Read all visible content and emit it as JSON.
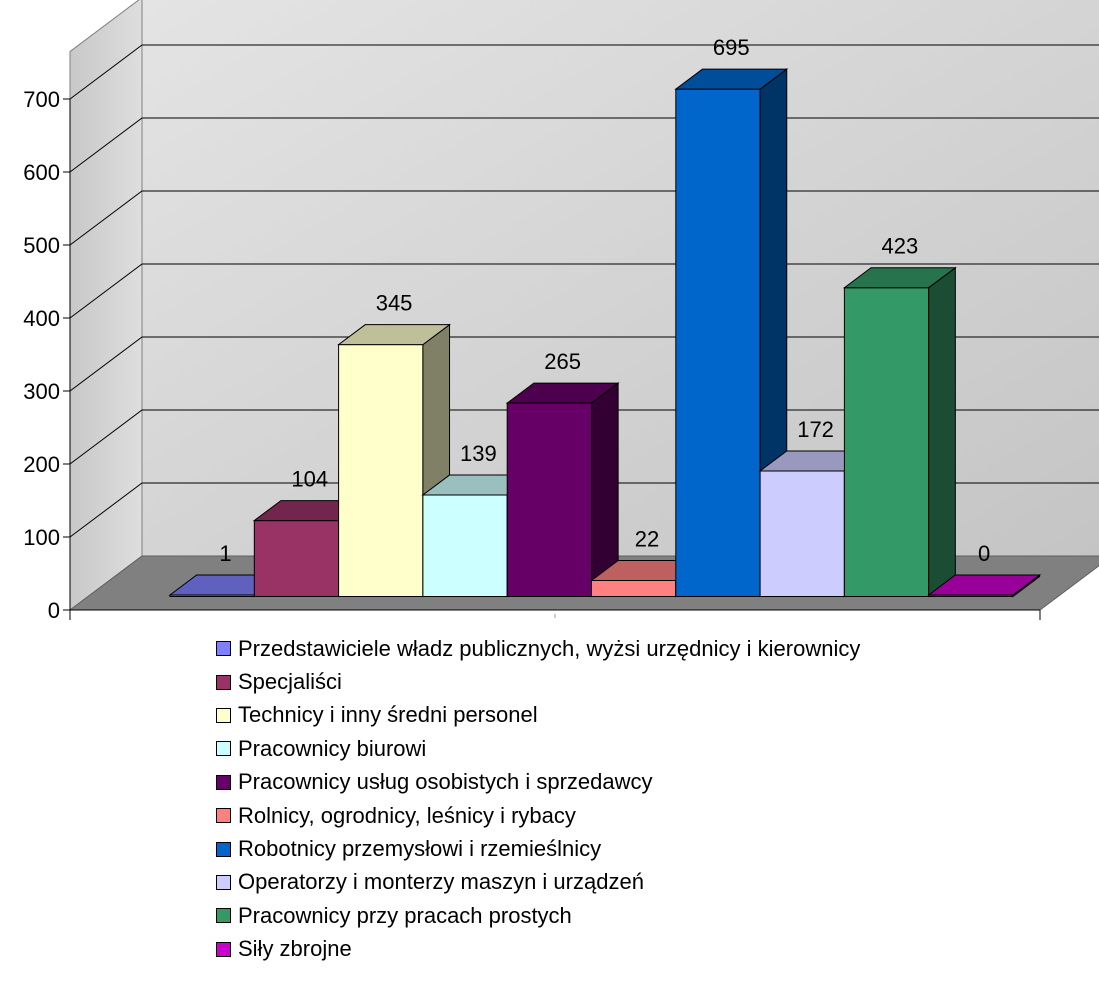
{
  "chart_data": {
    "type": "bar",
    "title": "",
    "xlabel": "",
    "ylabel": "",
    "ylim": [
      0,
      700
    ],
    "yticks": [
      0,
      100,
      200,
      300,
      400,
      500,
      600,
      700
    ],
    "grid": true,
    "legend_position": "bottom",
    "three_d": true,
    "series": [
      {
        "name": "Przedstawiciele władz publicznych, wyżsi urzędnicy i kierownicy",
        "value": 1,
        "color": "#8080ff"
      },
      {
        "name": "Specjaliści",
        "value": 104,
        "color": "#993366"
      },
      {
        "name": "Technicy i inny średni personel",
        "value": 345,
        "color": "#ffffcc"
      },
      {
        "name": "Pracownicy biurowi",
        "value": 139,
        "color": "#ccffff"
      },
      {
        "name": "Pracownicy usług osobistych i sprzedawcy",
        "value": 265,
        "color": "#660066"
      },
      {
        "name": "Rolnicy, ogrodnicy, leśnicy i rybacy",
        "value": 22,
        "color": "#ff8080"
      },
      {
        "name": "Robotnicy przemysłowi i rzemieślnicy",
        "value": 695,
        "color": "#0066cc"
      },
      {
        "name": "Operatorzy i monterzy maszyn i urządzeń",
        "value": 172,
        "color": "#ccccff"
      },
      {
        "name": "Pracownicy przy pracach prostych",
        "value": 423,
        "color": "#339966"
      },
      {
        "name": "Siły zbrojne",
        "value": 0,
        "color": "#cc00cc"
      }
    ]
  }
}
